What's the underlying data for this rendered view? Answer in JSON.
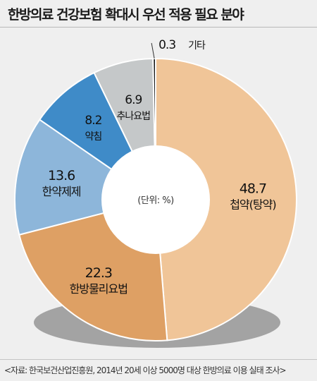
{
  "title": "한방의료 건강보험 확대시 우선 적용 필요 분야",
  "source": "<자료: 한국보건산업진흥원, 2014년 20세 이상 5000명 대상 한방의료 이용 실태 조사>",
  "center_label": "(단위: %)",
  "colors": {
    "background": "#efefef",
    "shadow": "#a3a3a3",
    "hole": "#ffffff"
  },
  "chart_data": {
    "type": "pie",
    "donut": true,
    "unit": "%",
    "start": "12 o'clock, clockwise",
    "slices": [
      {
        "label": "첩약(탕약)",
        "value": 48.7,
        "value_label": "48.7",
        "color": "#f0c598"
      },
      {
        "label": "한방물리요법",
        "value": 22.3,
        "value_label": "22.3",
        "color": "#dea064"
      },
      {
        "label": "한약제제",
        "value": 13.6,
        "value_label": "13.6",
        "color": "#8db6da"
      },
      {
        "label": "약침",
        "value": 8.2,
        "value_label": "8.2",
        "color": "#3f8bc8"
      },
      {
        "label": "추나요법",
        "value": 6.9,
        "value_label": "6.9",
        "color": "#c5c8c9"
      },
      {
        "label": "기타",
        "value": 0.3,
        "value_label": "0.3",
        "color": "#1e1e1e"
      }
    ]
  }
}
